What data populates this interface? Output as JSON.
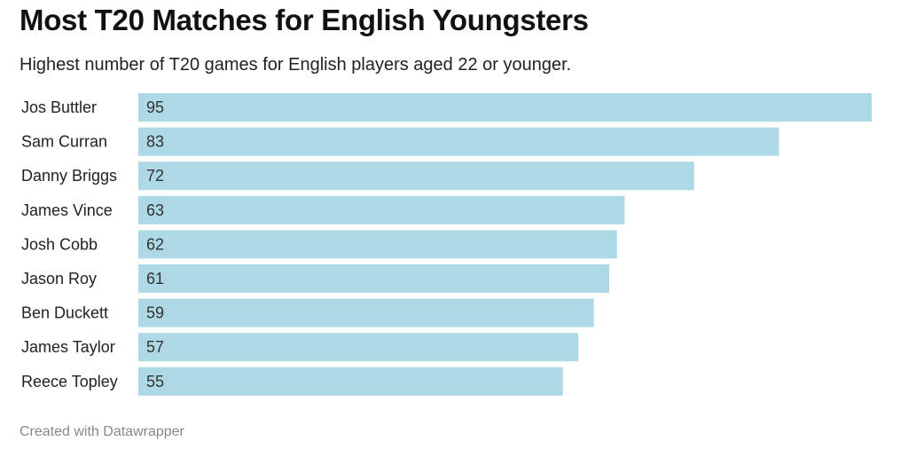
{
  "header": {
    "title": "Most T20 Matches for English Youngsters",
    "subtitle": "Highest number of T20 games for English players aged 22 or younger."
  },
  "footer": {
    "credit": "Created with Datawrapper"
  },
  "colors": {
    "bar": "#add8e6"
  },
  "chart_data": {
    "type": "bar",
    "orientation": "horizontal",
    "title": "Most T20 Matches for English Youngsters",
    "subtitle": "Highest number of T20 games for English players aged 22 or younger.",
    "categories": [
      "Jos Buttler",
      "Sam Curran",
      "Danny Briggs",
      "James Vince",
      "Josh Cobb",
      "Jason Roy",
      "Ben Duckett",
      "James Taylor",
      "Reece Topley"
    ],
    "values": [
      95,
      83,
      72,
      63,
      62,
      61,
      59,
      57,
      55
    ],
    "data_labels": [
      "95",
      "83",
      "72",
      "63",
      "62",
      "61",
      "59",
      "57",
      "55"
    ],
    "xlabel": "",
    "ylabel": "",
    "xlim": [
      0,
      95
    ],
    "grid": false,
    "legend": "none"
  }
}
